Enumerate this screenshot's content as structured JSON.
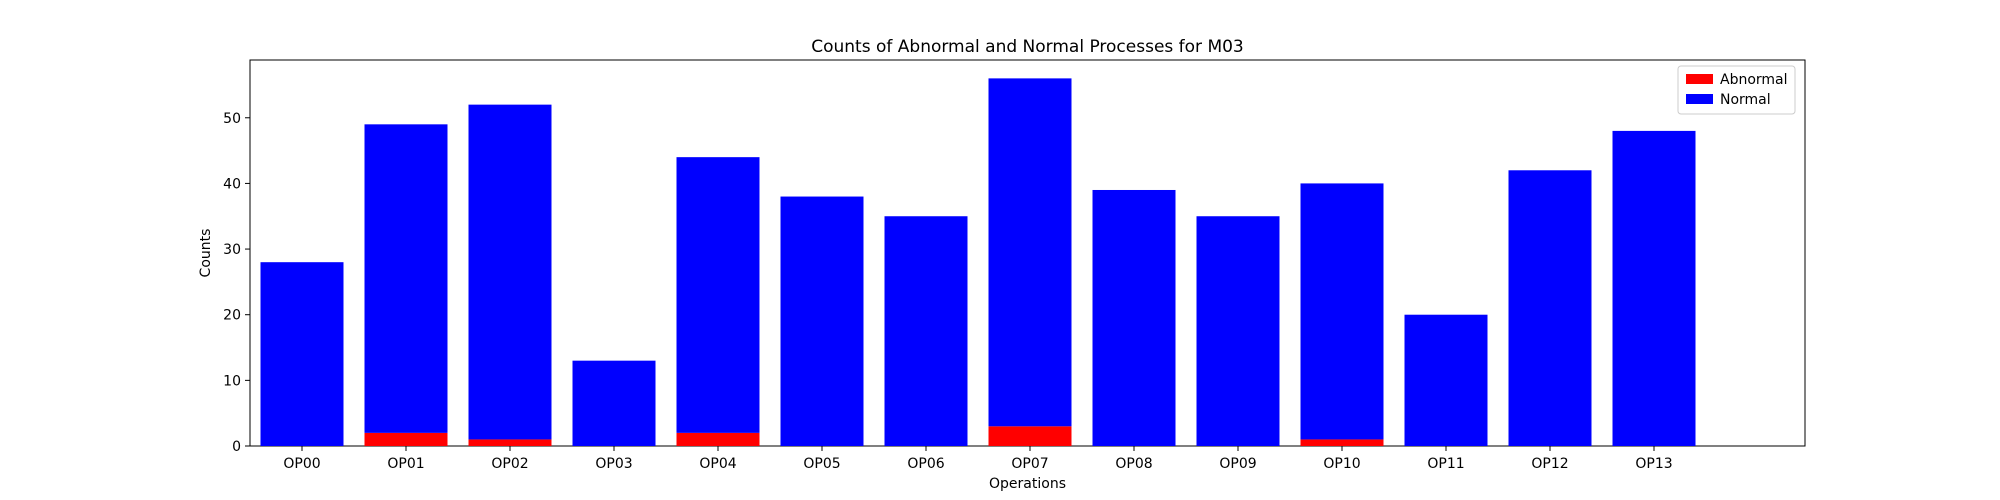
{
  "chart_data": {
    "type": "bar",
    "stacked": true,
    "title": "Counts of Abnormal and Normal Processes for M03",
    "xlabel": "Operations",
    "ylabel": "Counts",
    "categories": [
      "OP00",
      "OP01",
      "OP02",
      "OP03",
      "OP04",
      "OP05",
      "OP06",
      "OP07",
      "OP08",
      "OP09",
      "OP10",
      "OP11",
      "OP12",
      "OP13"
    ],
    "series": [
      {
        "name": "Abnormal",
        "color": "#ff0000",
        "values": [
          0,
          2,
          1,
          0,
          2,
          0,
          0,
          3,
          0,
          0,
          1,
          0,
          0,
          0
        ]
      },
      {
        "name": "Normal",
        "color": "#0000ff",
        "values": [
          28,
          47,
          51,
          13,
          42,
          38,
          35,
          53,
          39,
          35,
          39,
          20,
          42,
          48
        ]
      }
    ],
    "ylim": [
      0,
      58.8
    ],
    "yticks": [
      0,
      10,
      20,
      30,
      40,
      50
    ],
    "grid": false,
    "legend_position": "top-right"
  }
}
